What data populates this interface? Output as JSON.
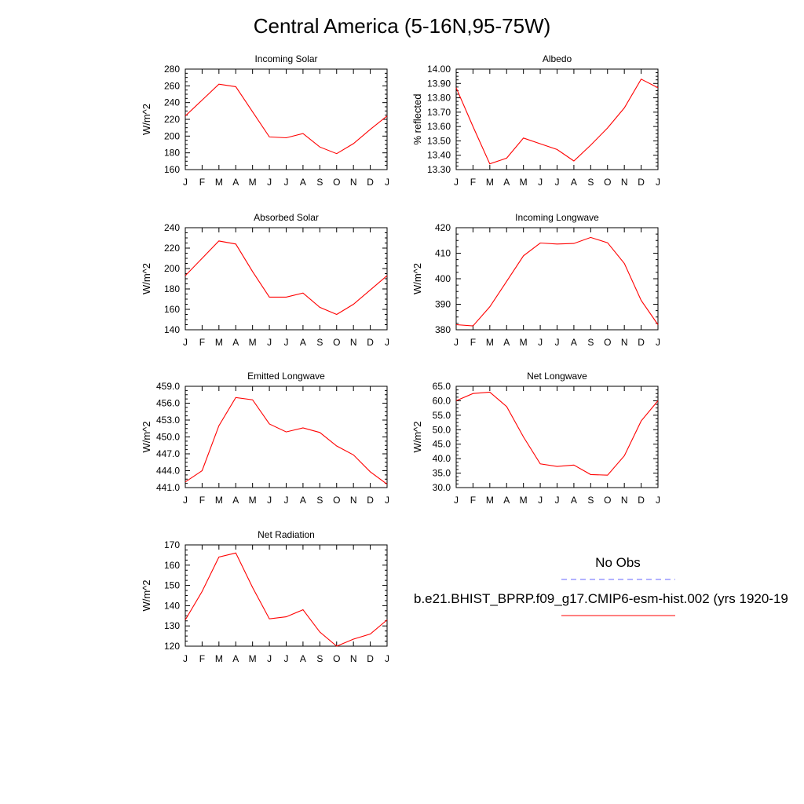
{
  "title": "Central America (5-16N,95-75W)",
  "legend": {
    "obs_label": "No Obs",
    "model_label": "b.e21.BHIST_BPRP.f09_g17.CMIP6-esm-hist.002 (yrs 1920-19",
    "obs_color": "#6666ff",
    "model_color": "#ff0000"
  },
  "chart_data": [
    {
      "type": "line",
      "title": "Incoming Solar",
      "ylabel": "W/m^2",
      "categories": [
        "J",
        "F",
        "M",
        "A",
        "M",
        "J",
        "J",
        "A",
        "S",
        "O",
        "N",
        "D",
        "J"
      ],
      "values": [
        224,
        243,
        262,
        259,
        229,
        199,
        198,
        203,
        187,
        179,
        191,
        208,
        224
      ],
      "ylim": [
        160,
        280
      ],
      "yticks": [
        "160",
        "180",
        "200",
        "220",
        "240",
        "260",
        "280"
      ]
    },
    {
      "type": "line",
      "title": "Albedo",
      "ylabel": "% reflected",
      "categories": [
        "J",
        "F",
        "M",
        "A",
        "M",
        "J",
        "J",
        "A",
        "S",
        "O",
        "N",
        "D",
        "J"
      ],
      "values": [
        13.87,
        13.6,
        13.34,
        13.38,
        13.52,
        13.48,
        13.44,
        13.36,
        13.47,
        13.59,
        13.73,
        13.93,
        13.87
      ],
      "ylim": [
        13.3,
        14.0
      ],
      "yticks": [
        "13.30",
        "13.40",
        "13.50",
        "13.60",
        "13.70",
        "13.80",
        "13.90",
        "14.00"
      ]
    },
    {
      "type": "line",
      "title": "Absorbed Solar",
      "ylabel": "W/m^2",
      "categories": [
        "J",
        "F",
        "M",
        "A",
        "M",
        "J",
        "J",
        "A",
        "S",
        "O",
        "N",
        "D",
        "J"
      ],
      "values": [
        193,
        210,
        227,
        224,
        197,
        172,
        172,
        176,
        162,
        155,
        165,
        179,
        193
      ],
      "ylim": [
        140,
        240
      ],
      "yticks": [
        "140",
        "160",
        "180",
        "200",
        "220",
        "240"
      ]
    },
    {
      "type": "line",
      "title": "Incoming Longwave",
      "ylabel": "W/m^2",
      "categories": [
        "J",
        "F",
        "M",
        "A",
        "M",
        "J",
        "J",
        "A",
        "S",
        "O",
        "N",
        "D",
        "J"
      ],
      "values": [
        382,
        381.5,
        389,
        399,
        409,
        414,
        413.6,
        413.8,
        416.2,
        414.1,
        406,
        391.5,
        382
      ],
      "ylim": [
        380,
        420
      ],
      "yticks": [
        "380",
        "390",
        "400",
        "410",
        "420"
      ]
    },
    {
      "type": "line",
      "title": "Emitted Longwave",
      "ylabel": "W/m^2",
      "categories": [
        "J",
        "F",
        "M",
        "A",
        "M",
        "J",
        "J",
        "A",
        "S",
        "O",
        "N",
        "D",
        "J"
      ],
      "values": [
        442,
        444,
        452,
        457,
        456.6,
        452.3,
        450.9,
        451.6,
        450.8,
        448.4,
        446.8,
        443.8,
        441.6
      ],
      "ylim": [
        441,
        459
      ],
      "yticks": [
        "441.0",
        "444.0",
        "447.0",
        "450.0",
        "453.0",
        "456.0",
        "459.0"
      ]
    },
    {
      "type": "line",
      "title": "Net Longwave",
      "ylabel": "W/m^2",
      "categories": [
        "J",
        "F",
        "M",
        "A",
        "M",
        "J",
        "J",
        "A",
        "S",
        "O",
        "N",
        "D",
        "J"
      ],
      "values": [
        60,
        62.5,
        63,
        58,
        47.5,
        38.2,
        37.3,
        37.8,
        34.5,
        34.3,
        41,
        53,
        60
      ],
      "ylim": [
        30,
        65
      ],
      "yticks": [
        "30.0",
        "35.0",
        "40.0",
        "45.0",
        "50.0",
        "55.0",
        "60.0",
        "65.0"
      ]
    },
    {
      "type": "line",
      "title": "Net Radiation",
      "ylabel": "W/m^2",
      "categories": [
        "J",
        "F",
        "M",
        "A",
        "M",
        "J",
        "J",
        "A",
        "S",
        "O",
        "N",
        "D",
        "J"
      ],
      "values": [
        133,
        147,
        164,
        166,
        149,
        133.5,
        134.5,
        138,
        127,
        120,
        123.5,
        126,
        133
      ],
      "ylim": [
        120,
        170
      ],
      "yticks": [
        "120",
        "130",
        "140",
        "150",
        "160",
        "170"
      ]
    }
  ]
}
